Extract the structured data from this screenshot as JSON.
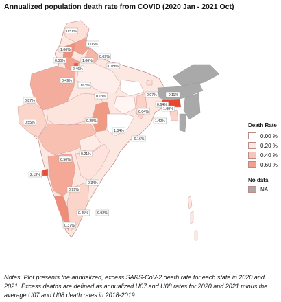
{
  "title": "Annualized population death rate from COVID (2020 Jan - 2021 Oct)",
  "legend": {
    "title": "Death Rate",
    "items": [
      {
        "label": "0.00 %",
        "color": "#ffffff"
      },
      {
        "label": "0.20 %",
        "color": "#fde9e4"
      },
      {
        "label": "0.40 %",
        "color": "#f8c6b8"
      },
      {
        "label": "0.60 %",
        "color": "#f3a18f"
      }
    ],
    "nodata_title": "No data",
    "nodata_label": "NA",
    "nodata_color": "#a9a9a9"
  },
  "map_labels": [
    "0.51%",
    "1.06%",
    "1.06%",
    "0.09%",
    "1.06%",
    "0.00%",
    "0.09%",
    "2.46%",
    "0.63%",
    "0.49%",
    "0.07%",
    "-0.11%",
    "0.13%",
    "0.64%",
    "0.87%",
    "0.04%",
    "1.80%",
    "0.25%",
    "1.42%",
    "0.55%",
    "1.04%",
    "-0.16%",
    "0.21%",
    "0.50%",
    "0.34%",
    "2.13%",
    "0.99%",
    "0.45%",
    "0.92%",
    "0.37%"
  ],
  "notes": "Notes. Plot presents the annualized, excess SARS-CoV-2 death rate for each state in 2020 and 2021. Excess deaths are defined as annualized U07 and U08 rates for 2020 and 2021 minus the average U07 and U08 death rates in 2018-2019."
}
